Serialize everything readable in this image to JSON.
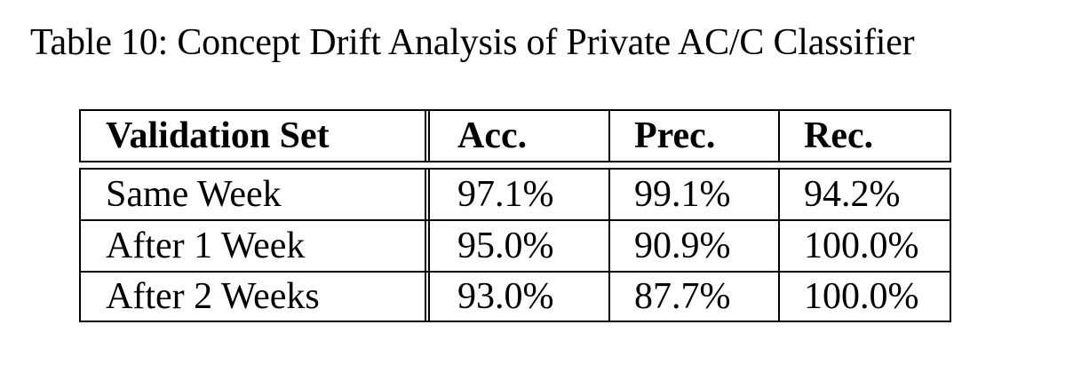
{
  "caption": "Table 10: Concept Drift Analysis of Private AC/C Classifier",
  "table": {
    "headers": [
      "Validation Set",
      "Acc.",
      "Prec.",
      "Rec."
    ],
    "rows": [
      [
        "Same Week",
        "97.1%",
        "99.1%",
        "94.2%"
      ],
      [
        "After 1 Week",
        "95.0%",
        "90.9%",
        "100.0%"
      ],
      [
        "After 2 Weeks",
        "93.0%",
        "87.7%",
        "100.0%"
      ]
    ]
  }
}
